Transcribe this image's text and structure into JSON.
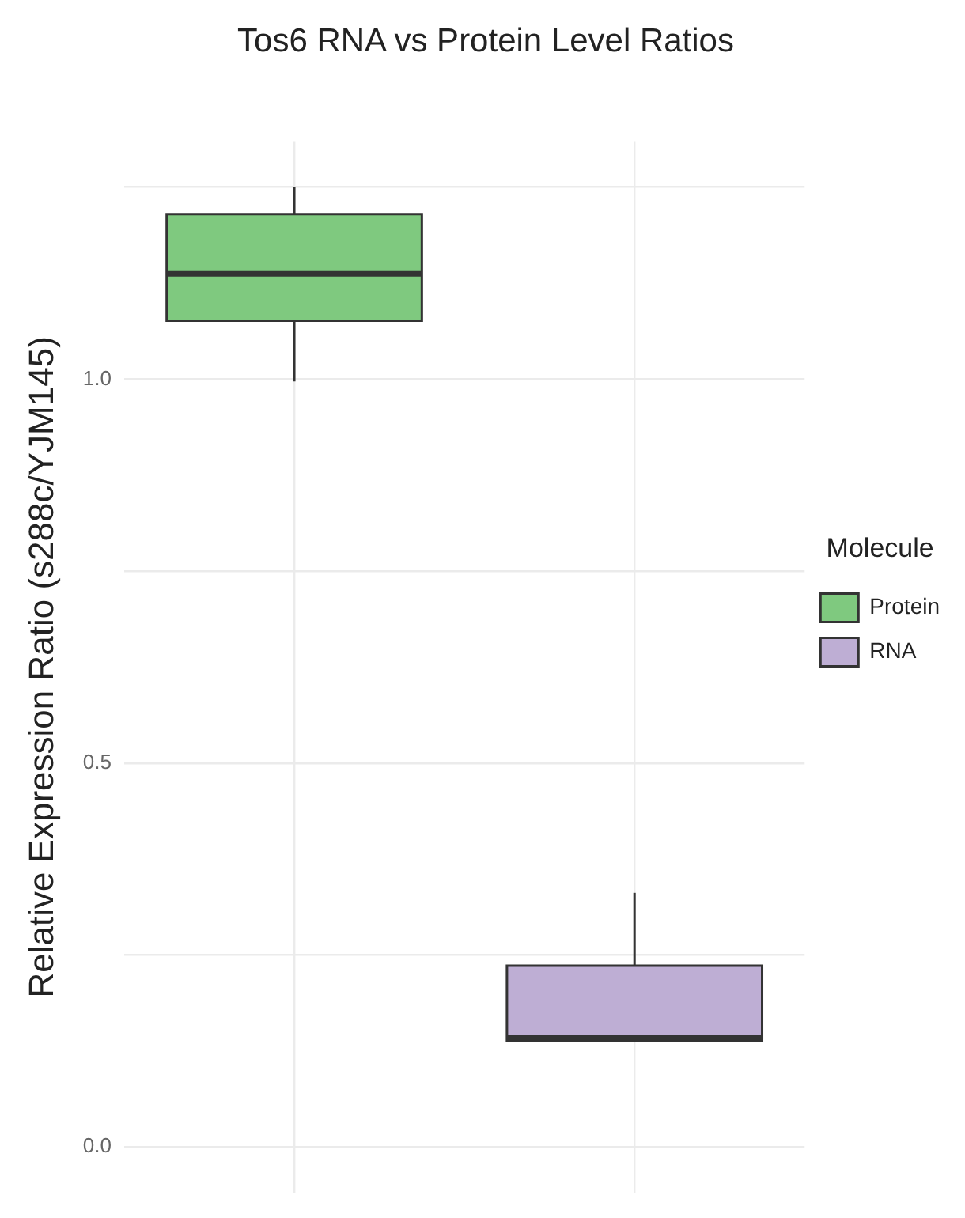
{
  "chart_data": {
    "type": "box",
    "title": "Tos6 RNA vs Protein Level Ratios",
    "ylabel": "Relative Expression Ratio (s288c/YJM145)",
    "legend_title": "Molecule",
    "categories": [
      null,
      null
    ],
    "series": [
      {
        "name": "Protein",
        "color": "#7fc97f",
        "boxes": [
          {
            "low": 0.997,
            "q1": 1.076,
            "median": 1.137,
            "q3": 1.215,
            "high": 1.25
          },
          null
        ]
      },
      {
        "name": "RNA",
        "color": "#beaed4",
        "boxes": [
          null,
          {
            "low": 0.138,
            "q1": 0.138,
            "median": 0.142,
            "q3": 0.236,
            "high": 0.331
          }
        ]
      }
    ],
    "ylim": [
      -0.06,
      1.31
    ],
    "yticks": [
      {
        "value": 0,
        "label": "0.0"
      },
      {
        "value": 0.25,
        "label": null
      },
      {
        "value": 0.5,
        "label": "0.5"
      },
      {
        "value": 0.75,
        "label": null
      },
      {
        "value": 1,
        "label": "1.0"
      },
      {
        "value": 1.25,
        "label": null
      }
    ],
    "grid": true,
    "legend": "right",
    "tick_labels": "y"
  }
}
